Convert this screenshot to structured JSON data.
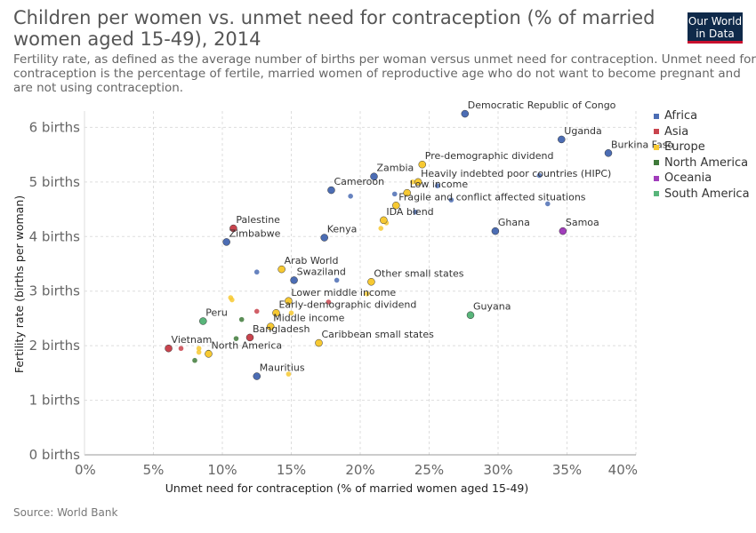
{
  "header": {
    "title": "Children per women vs. unmet need for contraception (% of married women aged 15-49), 2014",
    "subtitle": "Fertility rate, as defined as the average number of births per woman versus unmet need for contraception. Unmet need for contraception is the percentage of fertile, married women of reproductive age who do not want to become pregnant and are not using contraception.",
    "logo_line1": "Our World",
    "logo_line2": "in Data"
  },
  "footer": {
    "source": "Source: World Bank"
  },
  "colors": {
    "Africa": "#4c6db4",
    "Asia": "#c9444e",
    "Europe": "#f7c932",
    "North America": "#3f7a3a",
    "Oceania": "#a13dbb",
    "South America": "#58b57a"
  },
  "chart_data": {
    "type": "scatter",
    "title": "Children per women vs. unmet need for contraception (% of married women aged 15-49), 2014",
    "xlabel": "Unmet need for contraception (% of married women aged 15-49)",
    "ylabel": "Fertility rate (births per woman)",
    "xlim": [
      0,
      40
    ],
    "ylim": [
      0,
      6.3
    ],
    "x_ticks": [
      "0%",
      "5%",
      "10%",
      "15%",
      "20%",
      "25%",
      "30%",
      "35%",
      "40%"
    ],
    "y_ticks": [
      "0 births",
      "1 births",
      "2 births",
      "3 births",
      "4 births",
      "5 births",
      "6 births"
    ],
    "grid": true,
    "legend_position": "right",
    "legend": [
      "Africa",
      "Asia",
      "Europe",
      "North America",
      "Oceania",
      "South America"
    ],
    "points": [
      {
        "label": "Democratic Republic of Congo",
        "x": 27.6,
        "y": 6.25,
        "group": "Africa",
        "big": true
      },
      {
        "label": "Uganda",
        "x": 34.6,
        "y": 5.78,
        "group": "Africa",
        "big": true
      },
      {
        "label": "Burkina Faso",
        "x": 38.0,
        "y": 5.53,
        "group": "Africa",
        "big": true
      },
      {
        "label": "Pre-demographic dividend",
        "x": 24.5,
        "y": 5.32,
        "group": "Europe",
        "big": true
      },
      {
        "label": "Zambia",
        "x": 21.0,
        "y": 5.1,
        "group": "Africa",
        "big": true
      },
      {
        "label": "Heavily indebted poor countries (HIPC)",
        "x": 24.2,
        "y": 5.0,
        "group": "Europe",
        "big": true
      },
      {
        "label": "Cameroon",
        "x": 17.9,
        "y": 4.85,
        "group": "Africa",
        "big": true
      },
      {
        "label": "Low income",
        "x": 23.4,
        "y": 4.8,
        "group": "Europe",
        "big": true
      },
      {
        "label": "Fragile and conflict affected situations",
        "x": 22.6,
        "y": 4.57,
        "group": "Europe",
        "big": true
      },
      {
        "label": "IDA blend",
        "x": 21.7,
        "y": 4.3,
        "group": "Europe",
        "big": true
      },
      {
        "label": "Palestine",
        "x": 10.8,
        "y": 4.15,
        "group": "Asia",
        "big": true
      },
      {
        "label": "Ghana",
        "x": 29.8,
        "y": 4.1,
        "group": "Africa",
        "big": true
      },
      {
        "label": "Samoa",
        "x": 34.7,
        "y": 4.1,
        "group": "Oceania",
        "big": true
      },
      {
        "label": "Kenya",
        "x": 17.4,
        "y": 3.98,
        "group": "Africa",
        "big": true
      },
      {
        "label": "Zimbabwe",
        "x": 10.3,
        "y": 3.9,
        "group": "Africa",
        "big": true
      },
      {
        "label": "Arab World",
        "x": 14.3,
        "y": 3.4,
        "group": "Europe",
        "big": true
      },
      {
        "label": "Swaziland",
        "x": 15.2,
        "y": 3.2,
        "group": "Africa",
        "big": true
      },
      {
        "label": "Other small states",
        "x": 20.8,
        "y": 3.17,
        "group": "Europe",
        "big": true
      },
      {
        "label": "Lower middle income",
        "x": 14.8,
        "y": 2.82,
        "group": "Europe",
        "big": true
      },
      {
        "label": "Early-demographic dividend",
        "x": 13.9,
        "y": 2.6,
        "group": "Europe",
        "big": true
      },
      {
        "label": "Guyana",
        "x": 28.0,
        "y": 2.56,
        "group": "South America",
        "big": true
      },
      {
        "label": "Peru",
        "x": 8.6,
        "y": 2.45,
        "group": "South America",
        "big": true
      },
      {
        "label": "Middle income",
        "x": 13.5,
        "y": 2.35,
        "group": "Europe",
        "big": true
      },
      {
        "label": "Bangladesh",
        "x": 12.0,
        "y": 2.15,
        "group": "Asia",
        "big": true
      },
      {
        "label": "Caribbean small states",
        "x": 17.0,
        "y": 2.05,
        "group": "Europe",
        "big": true
      },
      {
        "label": "Vietnam",
        "x": 6.1,
        "y": 1.95,
        "group": "Asia",
        "big": true
      },
      {
        "label": "North America",
        "x": 9.0,
        "y": 1.85,
        "group": "Europe",
        "big": true
      },
      {
        "label": "Mauritius",
        "x": 12.5,
        "y": 1.44,
        "group": "Africa",
        "big": true
      },
      {
        "label": "",
        "x": 22.5,
        "y": 4.78,
        "group": "Africa"
      },
      {
        "label": "",
        "x": 19.3,
        "y": 4.74,
        "group": "Africa"
      },
      {
        "label": "",
        "x": 24.0,
        "y": 4.45,
        "group": "Africa"
      },
      {
        "label": "",
        "x": 26.6,
        "y": 4.67,
        "group": "Africa"
      },
      {
        "label": "",
        "x": 25.6,
        "y": 4.93,
        "group": "Africa"
      },
      {
        "label": "",
        "x": 33.0,
        "y": 5.12,
        "group": "Africa"
      },
      {
        "label": "",
        "x": 33.6,
        "y": 4.6,
        "group": "Africa"
      },
      {
        "label": "",
        "x": 12.5,
        "y": 3.35,
        "group": "Africa"
      },
      {
        "label": "",
        "x": 18.3,
        "y": 3.2,
        "group": "Africa"
      },
      {
        "label": "",
        "x": 23.8,
        "y": 5.0,
        "group": "Europe"
      },
      {
        "label": "",
        "x": 21.9,
        "y": 4.25,
        "group": "Europe"
      },
      {
        "label": "",
        "x": 21.5,
        "y": 4.15,
        "group": "Europe"
      },
      {
        "label": "",
        "x": 10.6,
        "y": 2.88,
        "group": "Europe"
      },
      {
        "label": "",
        "x": 10.7,
        "y": 2.84,
        "group": "Europe"
      },
      {
        "label": "",
        "x": 15.0,
        "y": 2.6,
        "group": "Europe"
      },
      {
        "label": "",
        "x": 20.5,
        "y": 2.95,
        "group": "Europe"
      },
      {
        "label": "",
        "x": 8.3,
        "y": 1.95,
        "group": "Europe"
      },
      {
        "label": "",
        "x": 8.3,
        "y": 1.88,
        "group": "Europe"
      },
      {
        "label": "",
        "x": 14.8,
        "y": 1.48,
        "group": "Europe"
      },
      {
        "label": "",
        "x": 12.5,
        "y": 2.63,
        "group": "Asia"
      },
      {
        "label": "",
        "x": 17.7,
        "y": 2.8,
        "group": "Asia"
      },
      {
        "label": "",
        "x": 7.0,
        "y": 1.95,
        "group": "Asia"
      },
      {
        "label": "",
        "x": 11.4,
        "y": 2.48,
        "group": "North America"
      },
      {
        "label": "",
        "x": 11.0,
        "y": 2.13,
        "group": "North America"
      },
      {
        "label": "",
        "x": 8.0,
        "y": 1.73,
        "group": "North America"
      },
      {
        "label": "",
        "x": 9.0,
        "y": 1.88,
        "group": "North America"
      }
    ]
  }
}
